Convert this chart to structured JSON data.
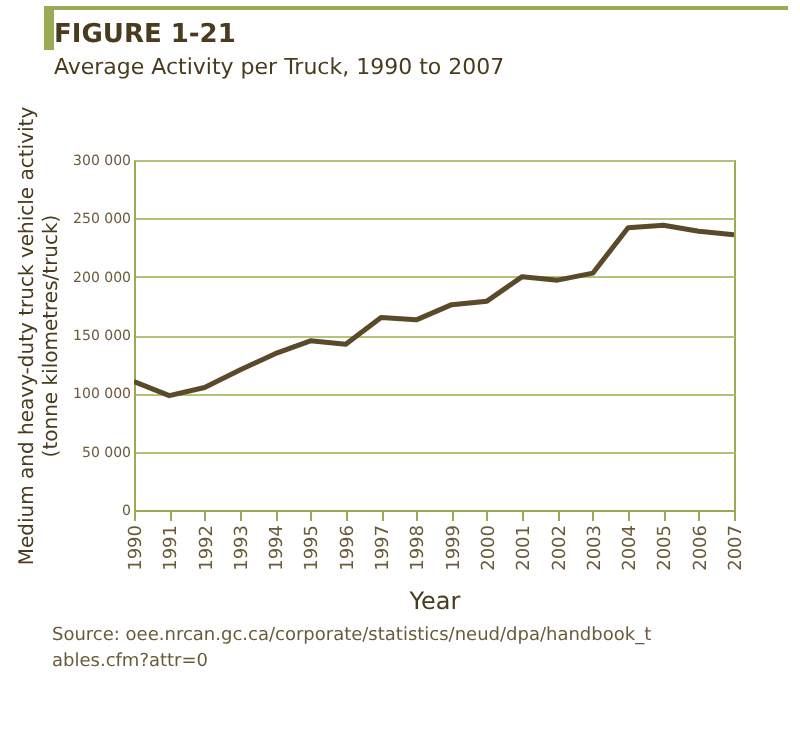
{
  "chart_data": {
    "type": "line",
    "title": "FIGURE 1-21",
    "subtitle": "Average Activity per Truck, 1990 to 2007",
    "xlabel": "Year",
    "ylabel": "Medium and heavy-duty truck vehicle activity\n(tonne kilometres/truck)",
    "categories": [
      "1990",
      "1991",
      "1992",
      "1993",
      "1994",
      "1995",
      "1996",
      "1997",
      "1998",
      "1999",
      "2000",
      "2001",
      "2002",
      "2003",
      "2004",
      "2005",
      "2006",
      "2007"
    ],
    "series": [
      {
        "color": "#5a4a2a",
        "values": [
          110000,
          98000,
          105000,
          120000,
          134000,
          145000,
          142000,
          165000,
          163000,
          176000,
          179000,
          200000,
          197000,
          203000,
          242000,
          244000,
          239000,
          236000
        ]
      }
    ],
    "ylim": [
      0,
      300000
    ],
    "yticks": [
      {
        "value": 0,
        "label": "0"
      },
      {
        "value": 50000,
        "label": "50 000"
      },
      {
        "value": 100000,
        "label": "100 000"
      },
      {
        "value": 150000,
        "label": "150 000"
      },
      {
        "value": 200000,
        "label": "200 000"
      },
      {
        "value": 250000,
        "label": "250 000"
      },
      {
        "value": 300000,
        "label": "300 000"
      }
    ],
    "grid": "y",
    "marker": "none",
    "line_style": "solid",
    "annotations": [
      "Source: oee.nrcan.gc.ca/corporate/statistics/neud/dpa/handbook_tables.cfm?attr=0"
    ]
  }
}
